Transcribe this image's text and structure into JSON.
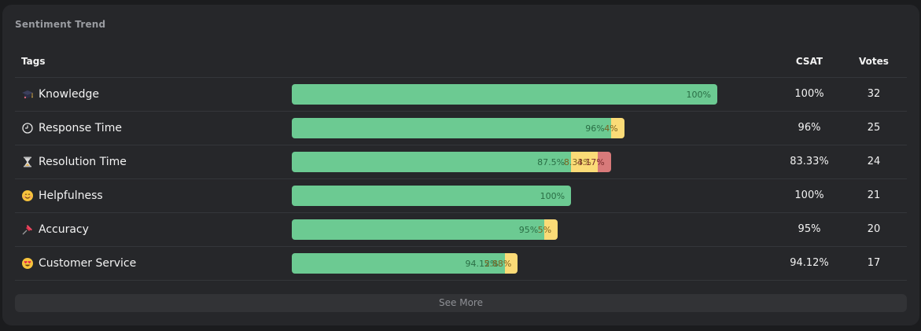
{
  "card": {
    "title": "Sentiment Trend"
  },
  "table": {
    "headers": {
      "tags": "Tags",
      "csat": "CSAT",
      "votes": "Votes"
    },
    "rows": [
      {
        "tag": "Knowledge",
        "icon": "graduation-cap-icon",
        "segments": [
          {
            "type": "positive",
            "label": "100%",
            "value": 100
          }
        ],
        "csat": "100%",
        "votes": "32"
      },
      {
        "tag": "Response Time",
        "icon": "clock-icon",
        "segments": [
          {
            "type": "positive",
            "label": "96%",
            "value": 96
          },
          {
            "type": "neutral",
            "label": "4%",
            "value": 4
          }
        ],
        "csat": "96%",
        "votes": "25"
      },
      {
        "tag": "Resolution Time",
        "icon": "hourglass-icon",
        "segments": [
          {
            "type": "positive",
            "label": "87.5%",
            "value": 87.5
          },
          {
            "type": "neutral",
            "label": "8.33%",
            "value": 8.33
          },
          {
            "type": "negative",
            "label": "4.17%",
            "value": 4.17
          }
        ],
        "csat": "83.33%",
        "votes": "24"
      },
      {
        "tag": "Helpfulness",
        "icon": "smiling-face-icon",
        "segments": [
          {
            "type": "positive",
            "label": "100%",
            "value": 100
          }
        ],
        "csat": "100%",
        "votes": "21"
      },
      {
        "tag": "Accuracy",
        "icon": "pushpin-icon",
        "segments": [
          {
            "type": "positive",
            "label": "95%",
            "value": 95
          },
          {
            "type": "neutral",
            "label": "5%",
            "value": 5
          }
        ],
        "csat": "95%",
        "votes": "20"
      },
      {
        "tag": "Customer Service",
        "icon": "heart-eyes-face-icon",
        "segments": [
          {
            "type": "positive",
            "label": "94.12%",
            "value": 94.12
          },
          {
            "type": "neutral",
            "label": "5.88%",
            "value": 5.88
          }
        ],
        "csat": "94.12%",
        "votes": "17"
      }
    ]
  },
  "footer": {
    "see_more_label": "See More"
  },
  "colors": {
    "positive": "#6cca92",
    "neutral": "#fbdb77",
    "negative": "#d87a7a",
    "card_bg": "#26272a"
  }
}
